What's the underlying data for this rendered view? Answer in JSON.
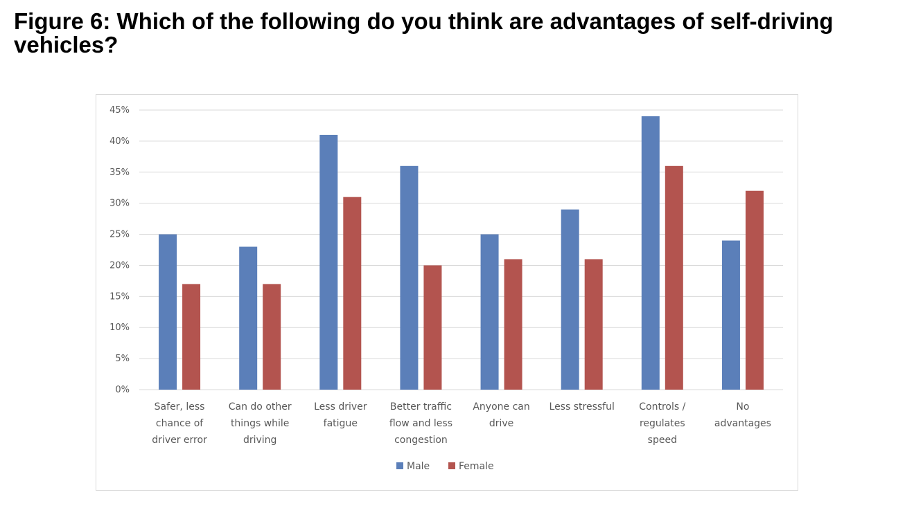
{
  "title": "Figure 6: Which of the following do you think are advantages of self-driving vehicles?",
  "chart_data": {
    "type": "bar",
    "title": "",
    "xlabel": "",
    "ylabel": "",
    "ylim": [
      0,
      45
    ],
    "yticks": [
      "0%",
      "5%",
      "10%",
      "15%",
      "20%",
      "25%",
      "30%",
      "35%",
      "40%",
      "45%"
    ],
    "grid": true,
    "legend_position": "bottom",
    "categories": [
      [
        "Safer, less",
        "chance of",
        "driver error"
      ],
      [
        "Can do other",
        "things while",
        "driving"
      ],
      [
        "Less driver",
        "fatigue"
      ],
      [
        "Better traffic",
        "flow and less",
        "congestion"
      ],
      [
        "Anyone can",
        "drive"
      ],
      [
        "Less stressful"
      ],
      [
        "Controls /",
        "regulates",
        "speed"
      ],
      [
        "No",
        "advantages"
      ]
    ],
    "series": [
      {
        "name": "Male",
        "color": "#5b7fb9",
        "values": [
          25,
          23,
          41,
          36,
          25,
          29,
          44,
          24
        ]
      },
      {
        "name": "Female",
        "color": "#b3544f",
        "values": [
          17,
          17,
          31,
          20,
          21,
          21,
          36,
          32
        ]
      }
    ]
  }
}
